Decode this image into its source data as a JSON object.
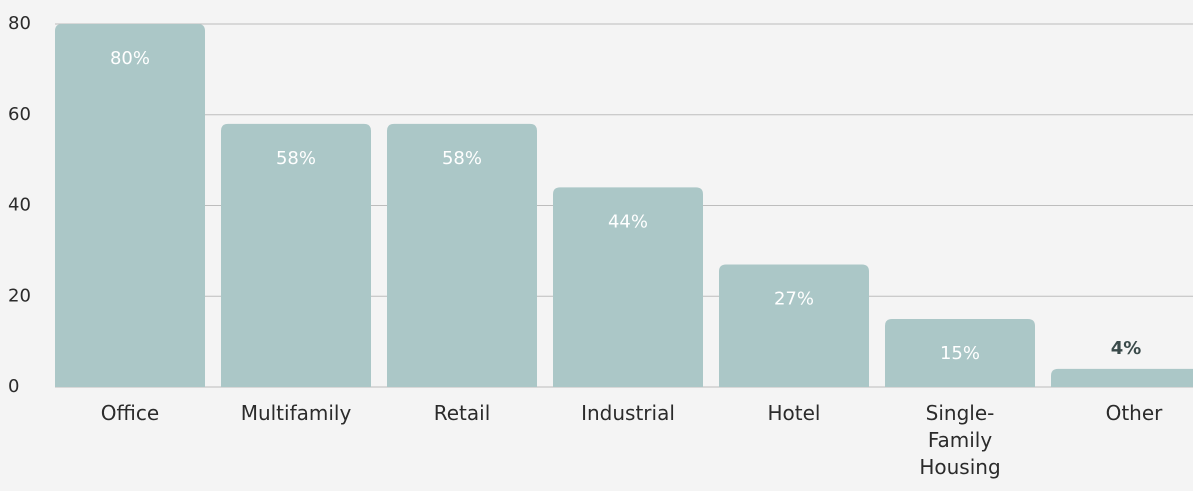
{
  "chart_data": {
    "type": "bar",
    "categories": [
      "Office",
      "Multifamily",
      "Retail",
      "Industrial",
      "Hotel",
      "Single-Family Housing",
      "Other"
    ],
    "values": [
      80,
      58,
      58,
      44,
      27,
      15,
      4
    ],
    "value_labels": [
      "80%",
      "58%",
      "58%",
      "44%",
      "27%",
      "15%",
      "4%"
    ],
    "color": "#abc7c7",
    "ylim": [
      0,
      80
    ],
    "yticks": [
      0,
      20,
      40,
      60,
      80
    ],
    "grid": true
  }
}
